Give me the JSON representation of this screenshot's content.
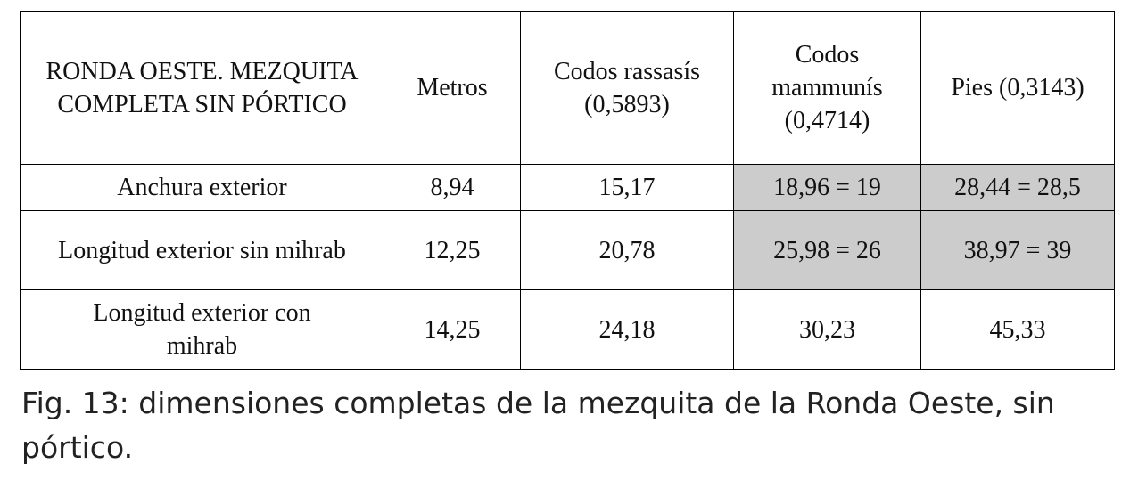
{
  "table": {
    "header": [
      "RONDA OESTE. MEZQUITA COMPLETA SIN PÓRTICO",
      "Metros",
      "Codos rassasís (0,5893)",
      "Codos mammunís (0,4714)",
      "Pies (0,3143)"
    ],
    "rows": [
      [
        "Anchura exterior",
        "8,94",
        "15,17",
        "18,96 = 19",
        "28,44 = 28,5"
      ],
      [
        "Longitud exterior sin mihrab",
        "12,25",
        "20,78",
        "25,98 = 26",
        "38,97 = 39"
      ],
      [
        "Longitud exterior con mihrab",
        "14,25",
        "24,18",
        "30,23",
        "45,33"
      ]
    ]
  },
  "caption": "Fig. 13: dimensiones completas de la mezquita de la Ronda Oeste, sin pórtico."
}
